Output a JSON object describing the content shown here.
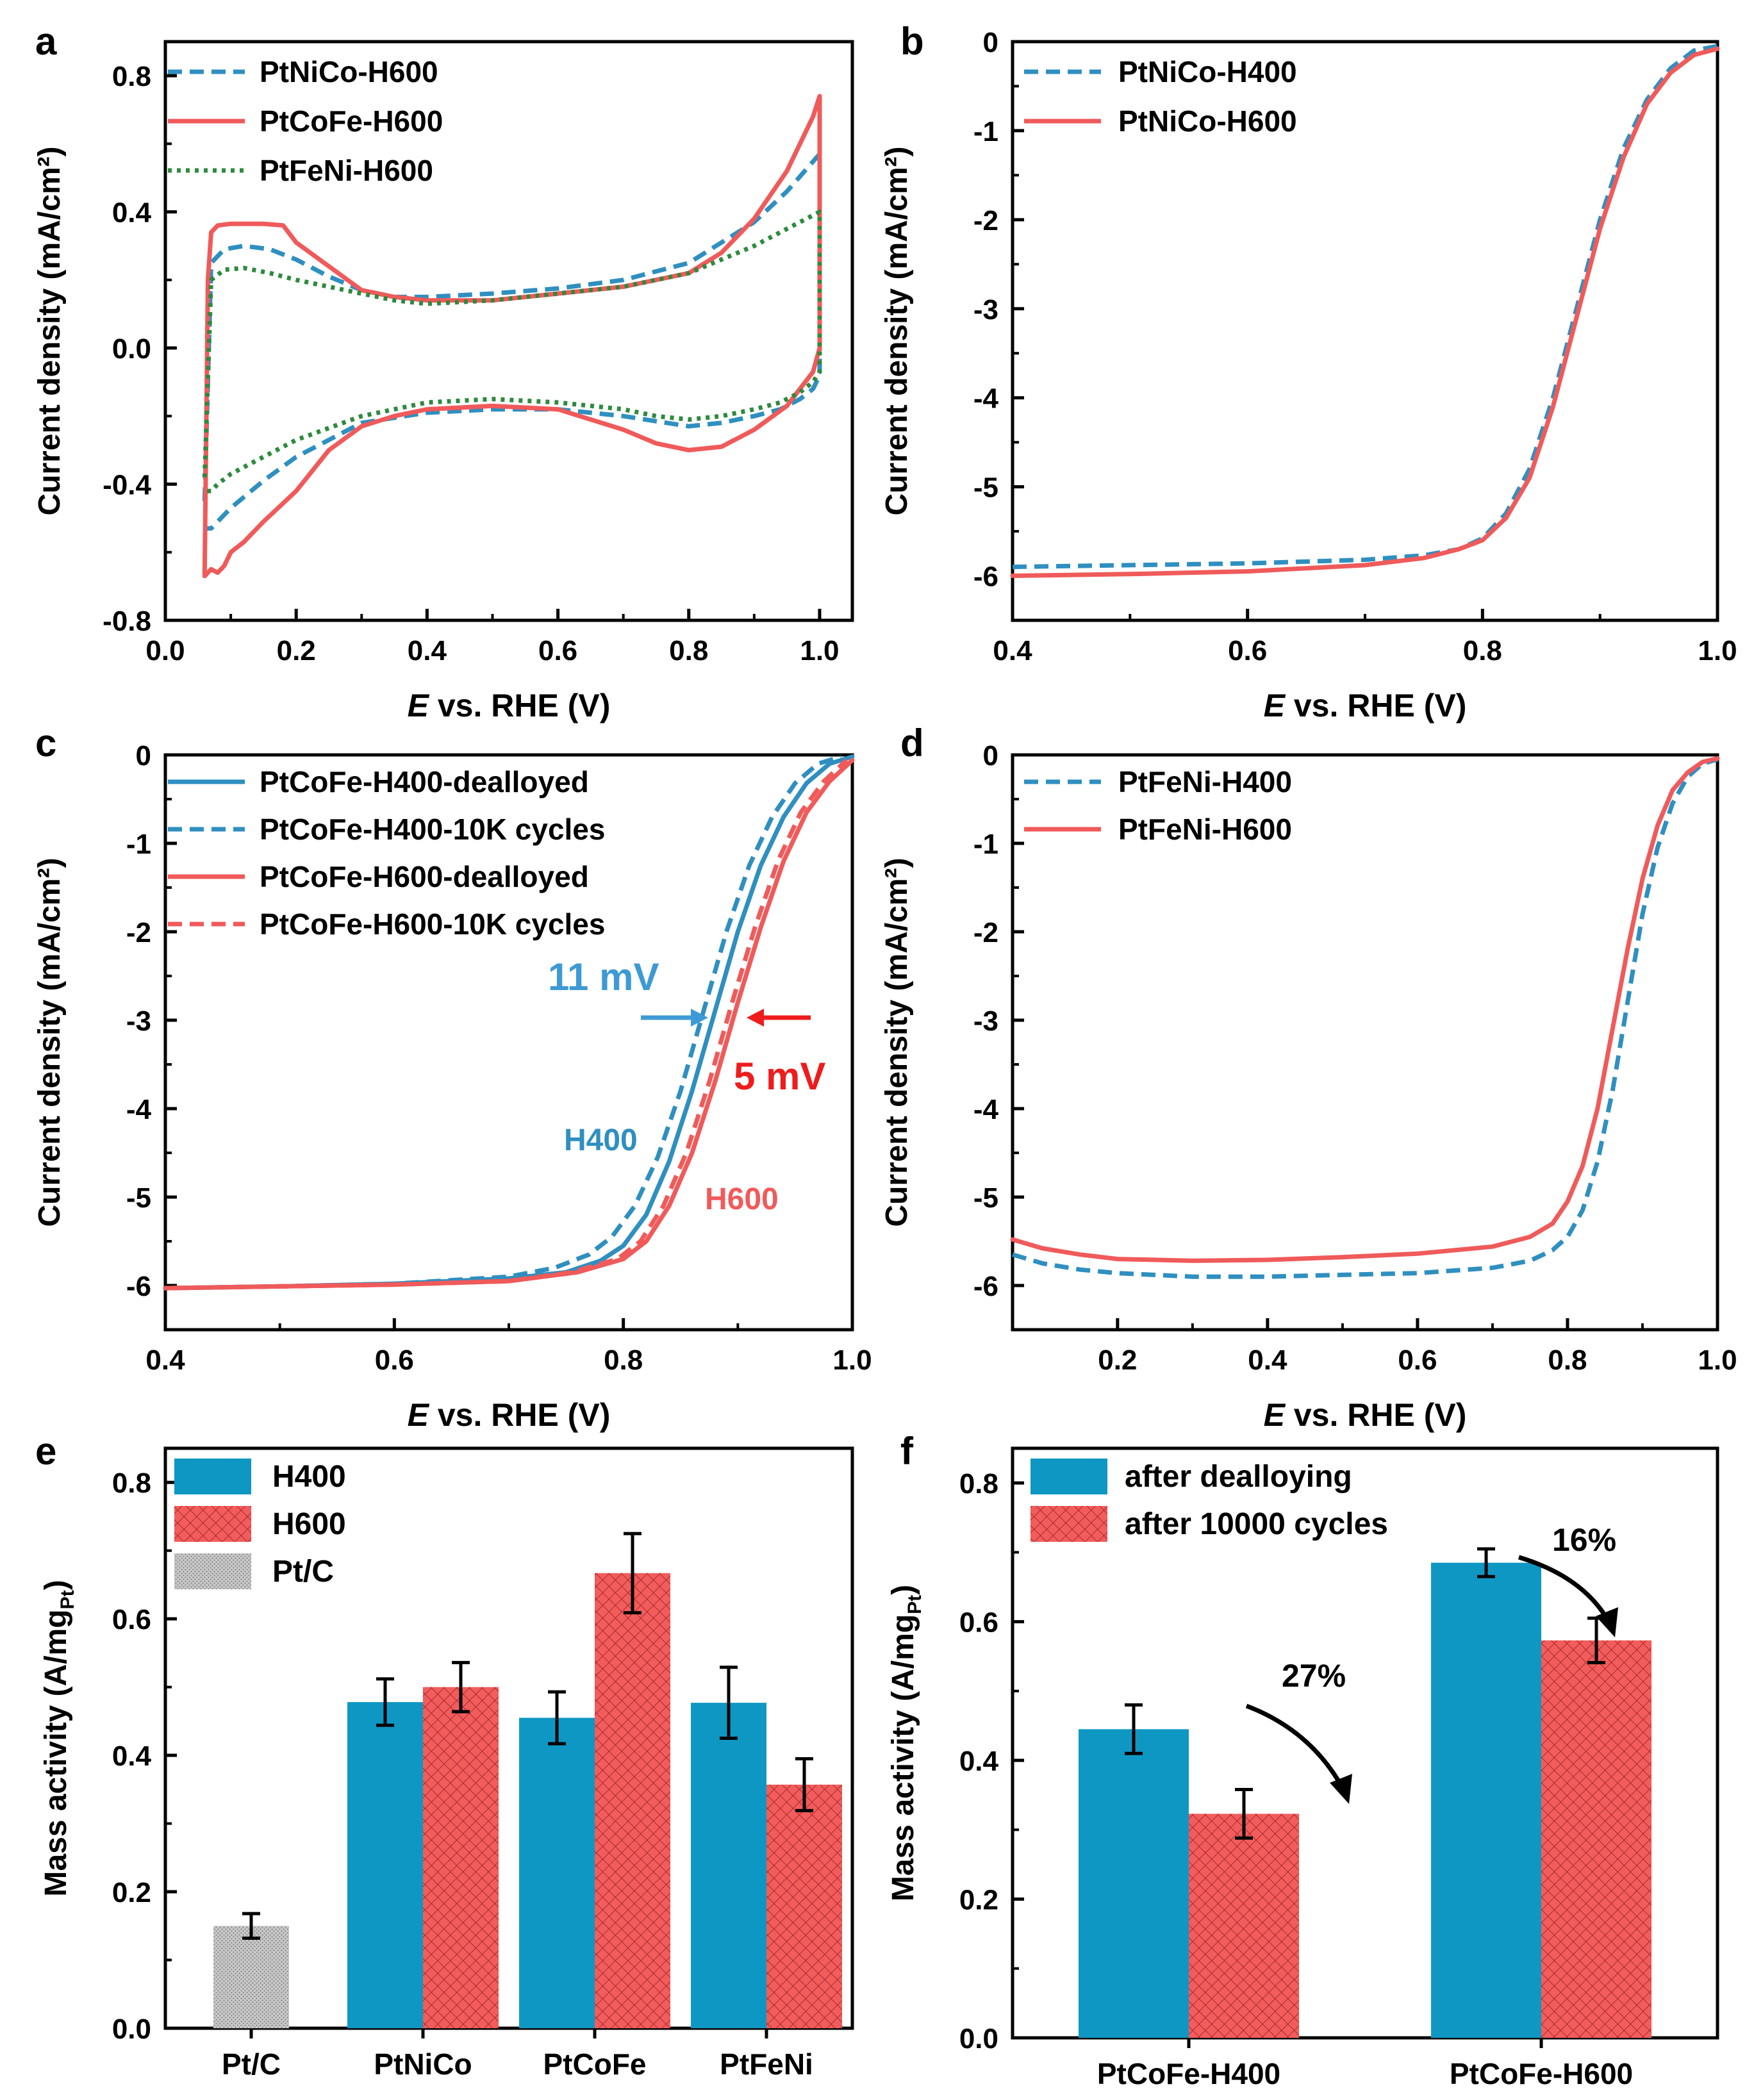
{
  "colors": {
    "blue": "#2f8fc0",
    "red": "#f05a5a",
    "green": "#2e8a3e",
    "grey": "#b8b8b8",
    "bar_blue": "#0f97c4",
    "bar_red": "#f25c5c",
    "arrow_red": "#ee1c1c",
    "arrow_blue": "#3d9ad6"
  },
  "chart_data": [
    {
      "panel": "a",
      "type": "line",
      "xlabel_italic": "E",
      "xlabel_rest": " vs. RHE (V)",
      "ylabel": "Current density (mA/cm²)",
      "xlim": [
        0.0,
        1.05
      ],
      "ylim": [
        -0.8,
        0.9
      ],
      "xticks": [
        0.0,
        0.2,
        0.4,
        0.6,
        0.8,
        1.0
      ],
      "xtick_labels": [
        "0.0",
        "0.2",
        "0.4",
        "0.6",
        "0.8",
        "1.0"
      ],
      "yticks": [
        -0.8,
        -0.4,
        0.0,
        0.4,
        0.8
      ],
      "ytick_labels": [
        "-0.8",
        "-0.4",
        "0.0",
        "0.4",
        "0.8"
      ],
      "legend": [
        "PtNiCo-H600",
        "PtCoFe-H600",
        "PtFeNi-H600"
      ],
      "series": [
        {
          "name": "PtNiCo-H600",
          "style": "dashed",
          "color": "blue",
          "x": [
            0.06,
            0.07,
            0.09,
            0.12,
            0.16,
            0.2,
            0.25,
            0.3,
            0.35,
            0.4,
            0.5,
            0.6,
            0.7,
            0.8,
            0.9,
            0.95,
            1.0,
            1.0,
            0.99,
            0.97,
            0.94,
            0.9,
            0.85,
            0.8,
            0.75,
            0.7,
            0.6,
            0.5,
            0.4,
            0.3,
            0.2,
            0.15,
            0.1,
            0.08,
            0.07,
            0.06
          ],
          "y": [
            -0.45,
            0.25,
            0.29,
            0.3,
            0.29,
            0.26,
            0.21,
            0.17,
            0.15,
            0.15,
            0.16,
            0.175,
            0.2,
            0.25,
            0.37,
            0.46,
            0.57,
            -0.08,
            -0.12,
            -0.15,
            -0.18,
            -0.2,
            -0.22,
            -0.23,
            -0.215,
            -0.2,
            -0.18,
            -0.18,
            -0.19,
            -0.22,
            -0.32,
            -0.39,
            -0.47,
            -0.51,
            -0.53,
            -0.53
          ]
        },
        {
          "name": "PtCoFe-H600",
          "style": "solid",
          "color": "red",
          "x": [
            0.06,
            0.065,
            0.07,
            0.08,
            0.1,
            0.15,
            0.18,
            0.2,
            0.25,
            0.3,
            0.35,
            0.4,
            0.5,
            0.6,
            0.7,
            0.8,
            0.85,
            0.9,
            0.95,
            0.99,
            1.0,
            1.0,
            0.99,
            0.97,
            0.95,
            0.9,
            0.85,
            0.8,
            0.75,
            0.7,
            0.6,
            0.5,
            0.4,
            0.35,
            0.3,
            0.25,
            0.2,
            0.15,
            0.12,
            0.1,
            0.09,
            0.08,
            0.07,
            0.065,
            0.06
          ],
          "y": [
            -0.67,
            0.2,
            0.34,
            0.36,
            0.365,
            0.365,
            0.36,
            0.31,
            0.24,
            0.17,
            0.15,
            0.14,
            0.14,
            0.16,
            0.18,
            0.22,
            0.28,
            0.38,
            0.52,
            0.68,
            0.74,
            0.0,
            -0.07,
            -0.12,
            -0.17,
            -0.24,
            -0.29,
            -0.3,
            -0.28,
            -0.24,
            -0.18,
            -0.17,
            -0.18,
            -0.2,
            -0.23,
            -0.3,
            -0.42,
            -0.51,
            -0.57,
            -0.6,
            -0.64,
            -0.66,
            -0.65,
            -0.66,
            -0.67
          ]
        },
        {
          "name": "PtFeNi-H600",
          "style": "dotted",
          "color": "green",
          "x": [
            0.06,
            0.07,
            0.09,
            0.12,
            0.16,
            0.2,
            0.25,
            0.3,
            0.35,
            0.4,
            0.5,
            0.6,
            0.7,
            0.8,
            0.9,
            0.95,
            1.0,
            1.0,
            0.99,
            0.97,
            0.94,
            0.9,
            0.85,
            0.8,
            0.75,
            0.7,
            0.6,
            0.5,
            0.4,
            0.3,
            0.2,
            0.15,
            0.1,
            0.08,
            0.07,
            0.06
          ],
          "y": [
            -0.38,
            0.2,
            0.23,
            0.235,
            0.22,
            0.2,
            0.18,
            0.16,
            0.14,
            0.13,
            0.14,
            0.16,
            0.18,
            0.22,
            0.3,
            0.35,
            0.4,
            -0.07,
            -0.1,
            -0.13,
            -0.16,
            -0.18,
            -0.2,
            -0.21,
            -0.2,
            -0.18,
            -0.16,
            -0.15,
            -0.16,
            -0.2,
            -0.27,
            -0.32,
            -0.37,
            -0.4,
            -0.42,
            -0.42
          ]
        }
      ]
    },
    {
      "panel": "b",
      "type": "line",
      "xlabel_italic": "E",
      "xlabel_rest": " vs. RHE (V)",
      "ylabel": "Current density (mA/cm²)",
      "xlim": [
        0.4,
        1.0
      ],
      "ylim": [
        -6.5,
        0.0
      ],
      "xticks": [
        0.4,
        0.6,
        0.8,
        1.0
      ],
      "xtick_labels": [
        "0.4",
        "0.6",
        "0.8",
        "1.0"
      ],
      "yticks": [
        0,
        -1,
        -2,
        -3,
        -4,
        -5,
        -6
      ],
      "ytick_labels": [
        "0",
        "-1",
        "-2",
        "-3",
        "-4",
        "-5",
        "-6"
      ],
      "legend": [
        "PtNiCo-H400",
        "PtNiCo-H600"
      ],
      "series": [
        {
          "name": "PtNiCo-H400",
          "style": "dashed",
          "color": "blue",
          "x": [
            0.4,
            0.5,
            0.6,
            0.7,
            0.75,
            0.78,
            0.8,
            0.82,
            0.84,
            0.86,
            0.88,
            0.9,
            0.92,
            0.94,
            0.96,
            0.98,
            1.0
          ],
          "y": [
            -5.9,
            -5.88,
            -5.86,
            -5.82,
            -5.77,
            -5.7,
            -5.58,
            -5.3,
            -4.8,
            -4.0,
            -3.0,
            -2.0,
            -1.2,
            -0.65,
            -0.3,
            -0.1,
            -0.05
          ]
        },
        {
          "name": "PtNiCo-H600",
          "style": "solid",
          "color": "red",
          "x": [
            0.4,
            0.5,
            0.6,
            0.7,
            0.75,
            0.78,
            0.8,
            0.82,
            0.84,
            0.86,
            0.88,
            0.9,
            0.92,
            0.94,
            0.96,
            0.98,
            1.0
          ],
          "y": [
            -6.0,
            -5.98,
            -5.95,
            -5.88,
            -5.8,
            -5.7,
            -5.6,
            -5.35,
            -4.9,
            -4.1,
            -3.1,
            -2.1,
            -1.3,
            -0.7,
            -0.35,
            -0.15,
            -0.08
          ]
        }
      ]
    },
    {
      "panel": "c",
      "type": "line",
      "xlabel_italic": "E",
      "xlabel_rest": " vs. RHE (V)",
      "ylabel": "Current density (mA/cm²)",
      "xlim": [
        0.4,
        1.0
      ],
      "ylim": [
        -6.5,
        0.0
      ],
      "xticks": [
        0.4,
        0.6,
        0.8,
        1.0
      ],
      "xtick_labels": [
        "0.4",
        "0.6",
        "0.8",
        "1.0"
      ],
      "yticks": [
        0,
        -1,
        -2,
        -3,
        -4,
        -5,
        -6
      ],
      "ytick_labels": [
        "0",
        "-1",
        "-2",
        "-3",
        "-4",
        "-5",
        "-6"
      ],
      "legend": [
        "PtCoFe-H400-dealloyed",
        "PtCoFe-H400-10K cycles",
        "PtCoFe-H600-dealloyed",
        "PtCoFe-H600-10K cycles"
      ],
      "annotations": [
        "11 mV",
        "5 mV",
        "H400",
        "H600"
      ],
      "series": [
        {
          "name": "PtCoFe-H400-dealloyed",
          "style": "solid",
          "color": "blue",
          "x": [
            0.4,
            0.5,
            0.6,
            0.7,
            0.75,
            0.78,
            0.8,
            0.82,
            0.84,
            0.86,
            0.88,
            0.9,
            0.92,
            0.94,
            0.96,
            0.98,
            1.0
          ],
          "y": [
            -6.03,
            -6.01,
            -5.98,
            -5.92,
            -5.85,
            -5.72,
            -5.55,
            -5.2,
            -4.6,
            -3.8,
            -2.9,
            -2.0,
            -1.25,
            -0.7,
            -0.32,
            -0.1,
            -0.02
          ]
        },
        {
          "name": "PtCoFe-H400-10K cycles",
          "style": "dashed",
          "color": "blue",
          "x": [
            0.4,
            0.5,
            0.6,
            0.7,
            0.74,
            0.77,
            0.79,
            0.81,
            0.83,
            0.85,
            0.87,
            0.89,
            0.91,
            0.93,
            0.95,
            0.97,
            0.99
          ],
          "y": [
            -6.03,
            -6.01,
            -5.98,
            -5.9,
            -5.8,
            -5.65,
            -5.45,
            -5.1,
            -4.55,
            -3.8,
            -2.9,
            -2.0,
            -1.25,
            -0.7,
            -0.32,
            -0.1,
            -0.02
          ]
        },
        {
          "name": "PtCoFe-H600-dealloyed",
          "style": "solid",
          "color": "red",
          "x": [
            0.4,
            0.5,
            0.6,
            0.7,
            0.76,
            0.8,
            0.82,
            0.84,
            0.86,
            0.88,
            0.9,
            0.92,
            0.94,
            0.96,
            0.98,
            1.0
          ],
          "y": [
            -6.03,
            -6.01,
            -5.99,
            -5.95,
            -5.85,
            -5.7,
            -5.5,
            -5.1,
            -4.5,
            -3.7,
            -2.8,
            -1.95,
            -1.2,
            -0.65,
            -0.3,
            -0.06
          ]
        },
        {
          "name": "PtCoFe-H600-10K cycles",
          "style": "dashed",
          "color": "red",
          "x": [
            0.4,
            0.5,
            0.6,
            0.7,
            0.755,
            0.795,
            0.815,
            0.835,
            0.855,
            0.875,
            0.895,
            0.915,
            0.935,
            0.955,
            0.975,
            0.995
          ],
          "y": [
            -6.03,
            -6.01,
            -5.99,
            -5.95,
            -5.85,
            -5.7,
            -5.5,
            -5.1,
            -4.5,
            -3.7,
            -2.8,
            -1.95,
            -1.2,
            -0.65,
            -0.3,
            -0.06
          ]
        }
      ]
    },
    {
      "panel": "d",
      "type": "line",
      "xlabel_italic": "E",
      "xlabel_rest": " vs. RHE (V)",
      "ylabel": "Current density (mA/cm²)",
      "xlim": [
        0.06,
        1.0
      ],
      "ylim": [
        -6.5,
        0.0
      ],
      "xticks": [
        0.2,
        0.4,
        0.6,
        0.8,
        1.0
      ],
      "xtick_labels": [
        "0.2",
        "0.4",
        "0.6",
        "0.8",
        "1.0"
      ],
      "yticks": [
        0,
        -1,
        -2,
        -3,
        -4,
        -5,
        -6
      ],
      "ytick_labels": [
        "0",
        "-1",
        "-2",
        "-3",
        "-4",
        "-5",
        "-6"
      ],
      "legend": [
        "PtFeNi-H400",
        "PtFeNi-H600"
      ],
      "series": [
        {
          "name": "PtFeNi-H400",
          "style": "dashed",
          "color": "blue",
          "x": [
            0.06,
            0.1,
            0.15,
            0.2,
            0.3,
            0.4,
            0.5,
            0.6,
            0.7,
            0.75,
            0.78,
            0.8,
            0.82,
            0.84,
            0.86,
            0.88,
            0.9,
            0.92,
            0.94,
            0.96,
            0.98,
            1.0
          ],
          "y": [
            -5.65,
            -5.75,
            -5.82,
            -5.86,
            -5.9,
            -5.9,
            -5.88,
            -5.86,
            -5.8,
            -5.72,
            -5.6,
            -5.45,
            -5.15,
            -4.6,
            -3.8,
            -2.8,
            -1.8,
            -1.05,
            -0.55,
            -0.25,
            -0.1,
            -0.05
          ]
        },
        {
          "name": "PtFeNi-H600",
          "style": "solid",
          "color": "red",
          "x": [
            0.06,
            0.1,
            0.15,
            0.2,
            0.3,
            0.4,
            0.5,
            0.6,
            0.7,
            0.75,
            0.78,
            0.8,
            0.82,
            0.84,
            0.86,
            0.88,
            0.9,
            0.92,
            0.94,
            0.96,
            0.98,
            1.0
          ],
          "y": [
            -5.48,
            -5.58,
            -5.65,
            -5.7,
            -5.72,
            -5.71,
            -5.68,
            -5.64,
            -5.56,
            -5.45,
            -5.3,
            -5.05,
            -4.65,
            -4.0,
            -3.1,
            -2.2,
            -1.4,
            -0.8,
            -0.4,
            -0.2,
            -0.08,
            -0.04
          ]
        }
      ]
    },
    {
      "panel": "e",
      "type": "bar",
      "ylabel_main": "Mass activity (A/mg",
      "ylabel_sub": "Pt",
      "ylabel_close": ")",
      "ylim": [
        0.0,
        0.85
      ],
      "yticks": [
        0.0,
        0.2,
        0.4,
        0.6,
        0.8
      ],
      "ytick_labels": [
        "0.0",
        "0.2",
        "0.4",
        "0.6",
        "0.8"
      ],
      "categories": [
        "Pt/C",
        "PtNiCo",
        "PtCoFe",
        "PtFeNi"
      ],
      "legend": [
        "H400",
        "H600",
        "Pt/C"
      ],
      "bars": [
        {
          "category": "Pt/C",
          "series": "Pt/C",
          "value": 0.15,
          "error": 0.018
        },
        {
          "category": "PtNiCo",
          "series": "H400",
          "value": 0.478,
          "error": 0.034
        },
        {
          "category": "PtNiCo",
          "series": "H600",
          "value": 0.5,
          "error": 0.036
        },
        {
          "category": "PtCoFe",
          "series": "H400",
          "value": 0.455,
          "error": 0.038
        },
        {
          "category": "PtCoFe",
          "series": "H600",
          "value": 0.667,
          "error": 0.058
        },
        {
          "category": "PtFeNi",
          "series": "H400",
          "value": 0.477,
          "error": 0.052
        },
        {
          "category": "PtFeNi",
          "series": "H600",
          "value": 0.357,
          "error": 0.038
        }
      ]
    },
    {
      "panel": "f",
      "type": "bar",
      "ylabel_main": "Mass activity (A/mg",
      "ylabel_sub": "Pt",
      "ylabel_close": ")",
      "ylim": [
        0.0,
        0.85
      ],
      "yticks": [
        0.0,
        0.2,
        0.4,
        0.6,
        0.8
      ],
      "ytick_labels": [
        "0.0",
        "0.2",
        "0.4",
        "0.6",
        "0.8"
      ],
      "categories": [
        "PtCoFe-H400",
        "PtCoFe-H600"
      ],
      "legend": [
        "after dealloying",
        "after 10000 cycles"
      ],
      "annotations": [
        "27%",
        "16%"
      ],
      "bars": [
        {
          "category": "PtCoFe-H400",
          "series": "after dealloying",
          "value": 0.445,
          "error": 0.035
        },
        {
          "category": "PtCoFe-H400",
          "series": "after 10000 cycles",
          "value": 0.323,
          "error": 0.035
        },
        {
          "category": "PtCoFe-H600",
          "series": "after dealloying",
          "value": 0.685,
          "error": 0.02
        },
        {
          "category": "PtCoFe-H600",
          "series": "after 10000 cycles",
          "value": 0.573,
          "error": 0.032
        }
      ]
    }
  ]
}
